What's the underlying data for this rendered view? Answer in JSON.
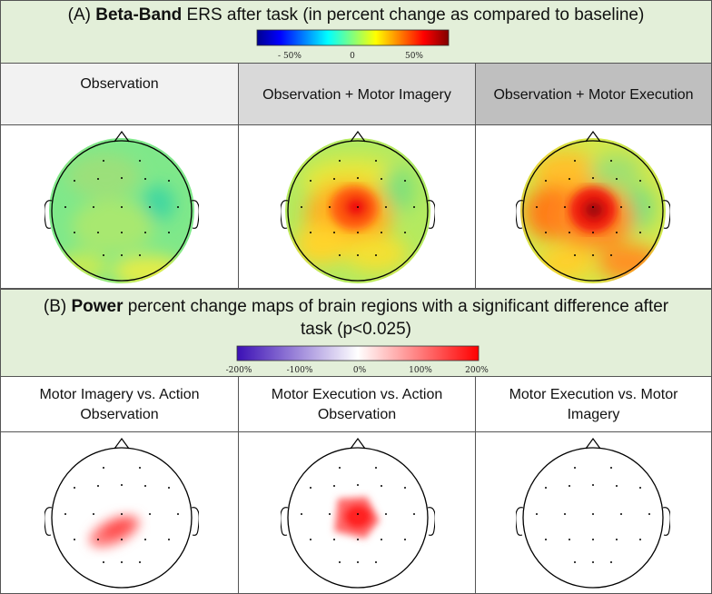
{
  "sectionA": {
    "letter": "(A)",
    "bold": "Beta-Band",
    "rest": " ERS after task (in percent change as compared to baseline)",
    "colorbar": {
      "ticks": [
        "- 50%",
        "0",
        "50%"
      ],
      "colors": [
        "#00008f",
        "#0000ff",
        "#00ffff",
        "#ffff00",
        "#ff0000",
        "#800000"
      ]
    },
    "columns": [
      {
        "label": "Observation",
        "bg": "#f2f2f2"
      },
      {
        "label": "Observation + Motor Imagery",
        "bg": "#d9d9d9"
      },
      {
        "label": "Observation + Motor Execution",
        "bg": "#bfbfbf"
      }
    ]
  },
  "sectionB": {
    "letter": "(B)",
    "bold": "Power",
    "rest_line1": " percent change maps of brain regions with a significant difference after",
    "line2": "task (p<0.025)",
    "colorbar": {
      "ticks": [
        "-200%",
        "-100%",
        "0%",
        "100%",
        "200%"
      ],
      "colors": [
        "#3b0fb5",
        "#ffffff",
        "#ff0000"
      ]
    },
    "columns": [
      {
        "line1": "Motor Imagery vs. Action",
        "line2": "Observation"
      },
      {
        "line1": "Motor Execution vs. Action",
        "line2": "Observation"
      },
      {
        "line1": "Motor Execution vs. Motor",
        "line2": "Imagery"
      }
    ]
  }
}
